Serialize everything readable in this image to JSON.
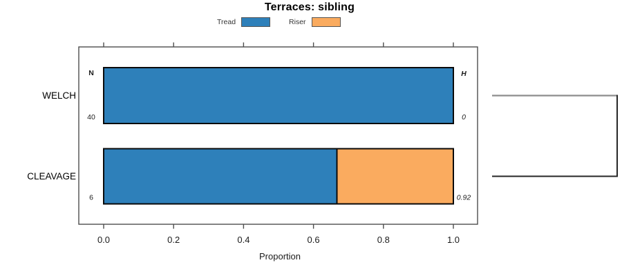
{
  "title": "Terraces: sibling",
  "legend": {
    "items": [
      {
        "label": "Tread",
        "color": "#2E80BA"
      },
      {
        "label": "Riser",
        "color": "#FAAB5F"
      }
    ]
  },
  "chart_data": {
    "type": "bar",
    "orientation": "horizontal",
    "stacked": true,
    "title": "Terraces: sibling",
    "xlabel": "Proportion",
    "xlim": [
      0.0,
      1.0
    ],
    "x_ticks": [
      "0.0",
      "0.2",
      "0.4",
      "0.6",
      "0.8",
      "1.0"
    ],
    "grid": false,
    "legend_position": "top",
    "categories": [
      "WELCH",
      "CLEAVAGE"
    ],
    "series": [
      {
        "name": "Tread",
        "color": "#2E80BA",
        "values": [
          1.0,
          0.667
        ]
      },
      {
        "name": "Riser",
        "color": "#FAAB5F",
        "values": [
          0.0,
          0.333
        ]
      }
    ],
    "annotations": {
      "n_header": "N",
      "h_header": "H",
      "n_values": [
        "40",
        "6"
      ],
      "h_values": [
        "0",
        "0.92"
      ]
    },
    "dendrogram": {
      "joins": [
        "WELCH",
        "CLEAVAGE"
      ],
      "top_branch_color": "#8C8C8C",
      "bottom_branch_color": "#262626"
    },
    "colors": {
      "bar_outline": "#0a0a0a",
      "plot_border": "#4d4d4d"
    }
  }
}
